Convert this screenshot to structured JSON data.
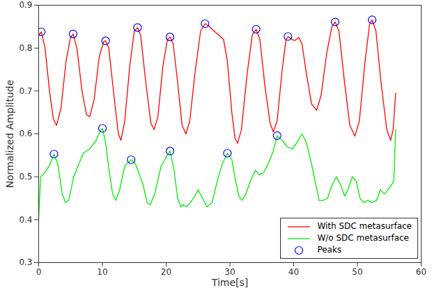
{
  "chart_data": {
    "type": "line",
    "x_label": "Time[s]",
    "y_label": "Normalized Amplitude",
    "xlim": [
      0,
      60
    ],
    "xticks": [
      0,
      10,
      20,
      30,
      40,
      50,
      60
    ],
    "ylim": [
      0.3,
      0.9
    ],
    "yticks": [
      0.3,
      0.4,
      0.5,
      0.6,
      0.7,
      0.8,
      0.9
    ],
    "grid": false,
    "legend": "lower right",
    "series": [
      {
        "name": "With SDC metasurface",
        "type": "line",
        "color": "#ff0000",
        "line_style": "solid",
        "x": [
          0,
          0.4,
          1,
          1.7,
          2.3,
          2.8,
          3.5,
          4.3,
          5,
          5.4,
          6,
          6.8,
          7.5,
          8,
          8.7,
          9.5,
          10.2,
          10.5,
          11,
          11.8,
          12.5,
          12.9,
          13.5,
          14.3,
          15,
          15.5,
          16,
          16.8,
          17.6,
          18.1,
          18.7,
          19.5,
          20.2,
          20.6,
          21.1,
          21.8,
          22.5,
          23.1,
          23.7,
          24.5,
          25.4,
          26.1,
          26.8,
          27.5,
          28.3,
          29,
          29.6,
          30.3,
          30.8,
          31.2,
          31.8,
          32.7,
          33.5,
          34.1,
          34.7,
          35.5,
          36.3,
          36.8,
          37.4,
          38.2,
          38.8,
          39.1,
          39.7,
          40.2,
          40.8,
          41.3,
          42,
          42.8,
          43.6,
          44.3,
          45.2,
          46,
          46.5,
          47.1,
          47.9,
          48.8,
          49.6,
          50.3,
          51.2,
          51.9,
          52.3,
          52.9,
          53.7,
          54.6,
          55.2,
          55.6,
          56
        ],
        "values": [
          0.83,
          0.838,
          0.8,
          0.7,
          0.635,
          0.62,
          0.66,
          0.77,
          0.825,
          0.833,
          0.8,
          0.7,
          0.645,
          0.64,
          0.68,
          0.78,
          0.815,
          0.817,
          0.8,
          0.69,
          0.6,
          0.585,
          0.63,
          0.76,
          0.84,
          0.848,
          0.83,
          0.72,
          0.625,
          0.61,
          0.64,
          0.76,
          0.82,
          0.826,
          0.81,
          0.72,
          0.62,
          0.6,
          0.63,
          0.74,
          0.84,
          0.857,
          0.85,
          0.84,
          0.83,
          0.82,
          0.77,
          0.65,
          0.59,
          0.578,
          0.61,
          0.74,
          0.83,
          0.844,
          0.82,
          0.71,
          0.625,
          0.605,
          0.63,
          0.75,
          0.82,
          0.827,
          0.82,
          0.818,
          0.825,
          0.81,
          0.74,
          0.67,
          0.655,
          0.69,
          0.79,
          0.85,
          0.861,
          0.84,
          0.73,
          0.62,
          0.595,
          0.63,
          0.77,
          0.855,
          0.866,
          0.84,
          0.72,
          0.61,
          0.585,
          0.61,
          0.695
        ]
      },
      {
        "name": "W/o SDC metasurface",
        "type": "line",
        "color": "#00ee00",
        "line_style": "solid",
        "x": [
          0,
          0.3,
          1,
          1.8,
          2.4,
          3,
          3.7,
          4.2,
          4.7,
          5.5,
          6.3,
          7,
          8,
          9,
          9.6,
          10,
          10.5,
          11,
          11.6,
          12.1,
          12.7,
          13.5,
          14.5,
          15.2,
          15.8,
          16.4,
          17,
          17.5,
          18.2,
          19.2,
          20.6,
          21.2,
          21.8,
          22.3,
          22.7,
          23.2,
          23.8,
          24.5,
          25,
          25.7,
          26.4,
          27.2,
          28,
          28.8,
          29.6,
          30.3,
          30.9,
          31.4,
          31.9,
          32.5,
          33.2,
          34,
          34.6,
          35.3,
          36,
          36.8,
          37.4,
          38.2,
          39,
          39.8,
          40.5,
          41.3,
          42,
          42.8,
          43.5,
          44,
          44.6,
          45.3,
          46,
          46.7,
          47.4,
          48,
          48.5,
          49.2,
          49.8,
          50.4,
          51,
          51.6,
          52.2,
          53,
          53.6,
          54.2,
          54.8,
          55.3,
          55.7,
          56
        ],
        "values": [
          0.4,
          0.5,
          0.51,
          0.53,
          0.553,
          0.53,
          0.46,
          0.44,
          0.445,
          0.5,
          0.53,
          0.555,
          0.565,
          0.585,
          0.605,
          0.613,
          0.58,
          0.52,
          0.46,
          0.445,
          0.47,
          0.525,
          0.54,
          0.53,
          0.505,
          0.48,
          0.44,
          0.435,
          0.46,
          0.525,
          0.56,
          0.52,
          0.45,
          0.43,
          0.435,
          0.43,
          0.44,
          0.455,
          0.47,
          0.45,
          0.43,
          0.44,
          0.49,
          0.53,
          0.555,
          0.54,
          0.49,
          0.455,
          0.445,
          0.46,
          0.49,
          0.515,
          0.505,
          0.51,
          0.53,
          0.56,
          0.596,
          0.585,
          0.57,
          0.565,
          0.58,
          0.6,
          0.58,
          0.53,
          0.48,
          0.445,
          0.445,
          0.45,
          0.48,
          0.5,
          0.48,
          0.455,
          0.47,
          0.5,
          0.49,
          0.45,
          0.44,
          0.445,
          0.44,
          0.445,
          0.47,
          0.46,
          0.47,
          0.48,
          0.49,
          0.61
        ]
      },
      {
        "name": "Peaks",
        "type": "scatter",
        "marker": "circle",
        "color": "#0000ff",
        "x": [
          0.4,
          5.4,
          10.5,
          15.5,
          20.6,
          26.1,
          34.1,
          39.1,
          46.5,
          52.3,
          2.4,
          10,
          14.5,
          20.6,
          29.6,
          37.4
        ],
        "values": [
          0.838,
          0.833,
          0.817,
          0.848,
          0.826,
          0.857,
          0.844,
          0.827,
          0.861,
          0.866,
          0.553,
          0.613,
          0.54,
          0.56,
          0.555,
          0.596
        ]
      }
    ]
  }
}
